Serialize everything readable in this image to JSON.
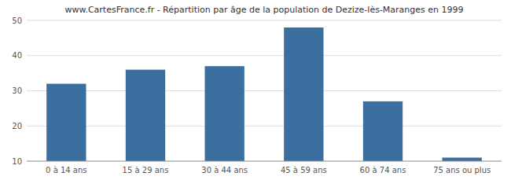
{
  "chart_data": {
    "type": "bar",
    "title": "www.CartesFrance.fr - Répartition par âge de la population de Dezize-lès-Maranges en 1999",
    "categories": [
      "0 à 14 ans",
      "15 à 29 ans",
      "30 à 44 ans",
      "45 à 59 ans",
      "60 à 74 ans",
      "75 ans ou plus"
    ],
    "values": [
      32,
      36,
      37,
      48,
      27,
      11
    ],
    "color": "#3a6f9f",
    "ylim": [
      10,
      50
    ],
    "yticks": [
      10,
      20,
      30,
      40,
      50
    ],
    "grid": true
  }
}
